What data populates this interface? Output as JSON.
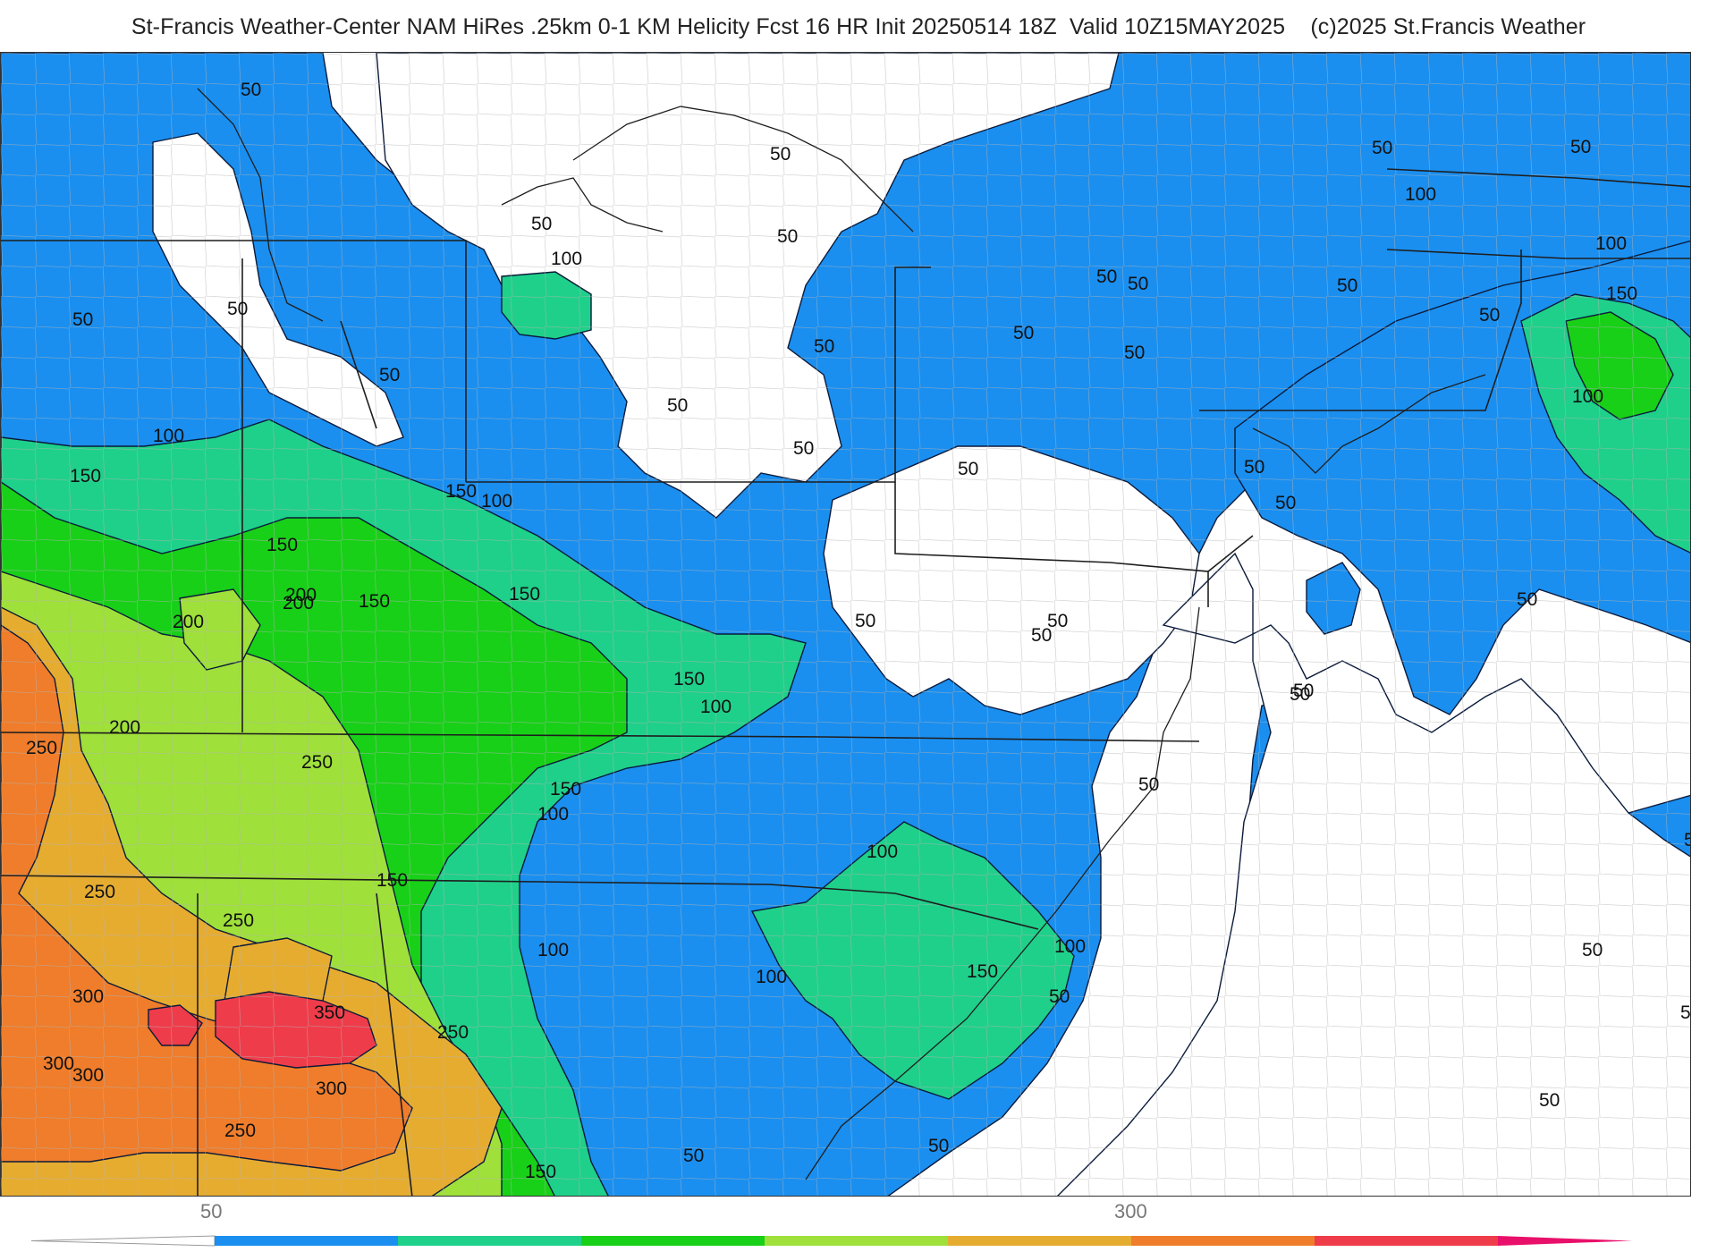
{
  "title": "St-Francis Weather-Center NAM HiRes .25km 0-1 KM Helicity Fcst 16 HR Init 20250514 18Z  Valid 10Z15MAY2025    (c)2025 St.Francis Weather",
  "map": {
    "field": "0-1 KM Helicity",
    "contour_interval": 50,
    "colors": {
      "background": "#ffffff",
      "c50": "#1a8ff0",
      "c100": "#1fd08a",
      "c150": "#18d018",
      "c200": "#9fe03a",
      "c250": "#e6ac30",
      "c300": "#ef7d2b",
      "c350": "#ef3c4a",
      "borders": "#222222",
      "county_lines": "#9a9a9a"
    },
    "contour_labels": [
      "50",
      "50",
      "100",
      "150",
      "200",
      "250",
      "300",
      "350",
      "50",
      "50",
      "50",
      "50",
      "100",
      "50",
      "50",
      "150",
      "100",
      "150",
      "150",
      "200",
      "200",
      "150",
      "150",
      "100",
      "150",
      "200",
      "250",
      "250",
      "250",
      "300",
      "300",
      "300",
      "250",
      "250",
      "150",
      "100",
      "150",
      "100",
      "50",
      "50",
      "50",
      "50",
      "50",
      "50",
      "50",
      "50",
      "50",
      "50",
      "50",
      "50",
      "50",
      "100",
      "100",
      "150",
      "50",
      "100",
      "50",
      "100",
      "50",
      "50",
      "100",
      "150",
      "100",
      "50",
      "50",
      "50",
      "50",
      "50",
      "50",
      "50",
      "50",
      "50",
      "50"
    ]
  },
  "legend": {
    "tick_labels": [
      "50",
      "300"
    ],
    "bins": [
      {
        "value": 50,
        "color": "#1a8ff0"
      },
      {
        "value": 100,
        "color": "#1fd08a"
      },
      {
        "value": 150,
        "color": "#18d018"
      },
      {
        "value": 200,
        "color": "#9fe03a"
      },
      {
        "value": 250,
        "color": "#e6ac30"
      },
      {
        "value": 300,
        "color": "#ef7d2b"
      },
      {
        "value": 350,
        "color": "#ef3c4a"
      },
      {
        "value": 400,
        "color": "#e8106a"
      }
    ]
  }
}
